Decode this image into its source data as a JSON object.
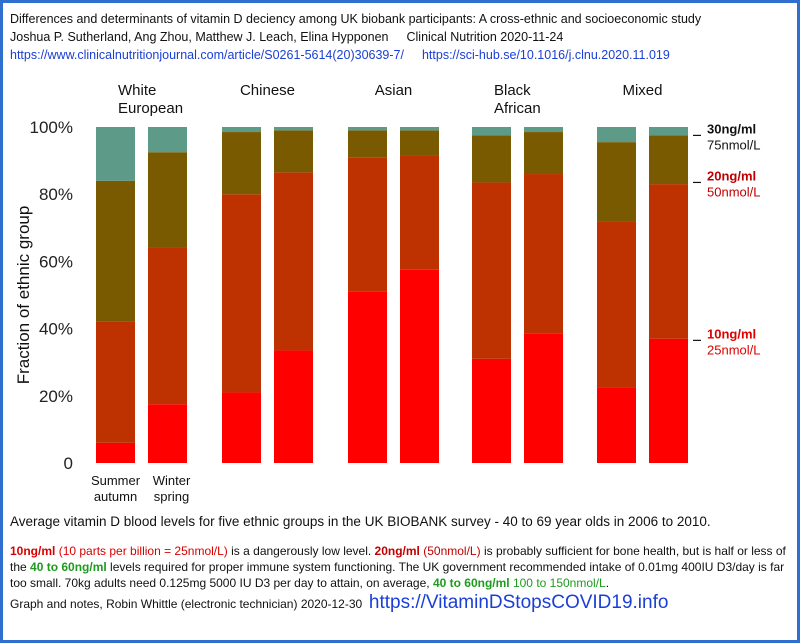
{
  "header": {
    "title": "Differences and determinants of vitamin D deciency among UK biobank participants: A cross-ethnic and socioeconomic study",
    "authors": "Joshua P. Sutherland, Ang Zhou, Matthew J. Leach, Elina Hypponen",
    "journal": "Clinical Nutrition 2020-11-24",
    "link1": "https://www.clinicalnutritionjournal.com/article/S0261-5614(20)30639-7/",
    "link2": "https://sci-hub.se/10.1016/j.clnu.2020.11.019"
  },
  "chart_data": {
    "type": "bar",
    "stacked": true,
    "ylabel": "Fraction of ethnic group",
    "ylim": [
      0,
      100
    ],
    "yticks": [
      "0",
      "20%",
      "40%",
      "60%",
      "80%",
      "100%"
    ],
    "groups": [
      "White European",
      "Chinese",
      "Asian",
      "Black African",
      "Mixed"
    ],
    "bar_labels": [
      [
        "Summer",
        "autumn"
      ],
      [
        "Winter",
        "spring"
      ]
    ],
    "colors": [
      "#ff0000",
      "#bd3200",
      "#7a5a00",
      "#5d9a88"
    ],
    "series_boundaries_percent": [
      [
        6,
        42,
        84
      ],
      [
        17.5,
        64,
        92.5
      ],
      [
        21,
        80,
        98.5
      ],
      [
        33.5,
        86.5,
        99
      ],
      [
        51,
        91,
        99
      ],
      [
        57.5,
        91.5,
        99
      ],
      [
        31,
        83.5,
        97.5
      ],
      [
        38.5,
        86,
        98.5
      ],
      [
        22.5,
        72,
        95.5
      ],
      [
        37,
        83,
        97.5
      ]
    ],
    "thresholds": [
      {
        "y": 97.5,
        "label": "30ng/ml",
        "sub": "75nmol/L",
        "color": "#111111"
      },
      {
        "y": 83.5,
        "label": "20ng/ml",
        "sub": "50nmol/L",
        "color": "#c00000"
      },
      {
        "y": 36.5,
        "label": "10ng/ml",
        "sub": "25nmol/L",
        "color": "#e00000"
      }
    ]
  },
  "caption": "Average vitamin D blood levels for five ethnic groups in the UK BIOBANK survey - 40 to 69 year olds in 2006 to 2010.",
  "notes": {
    "t1": "10ng/ml",
    "t2": " (10 parts per billion = 25nmol/L)",
    "t3": " is a dangerously low level.  ",
    "t4": "20ng/ml",
    "t5": " (50nmol/L)",
    "t6": " is probably sufficient for bone health, but is half or less of the ",
    "t7": "40 to 60ng/ml",
    "t8": " levels required for proper immune system functioning.  The UK government recommended intake of 0.01mg 400IU D3/day is far too small.  70kg adults need 0.125mg 5000 IU D3 per day to attain, on average, ",
    "t9": "40 to 60ng/ml",
    "t10": " 100 to 150nmol/L",
    "t11": "."
  },
  "credit": {
    "text": "Graph and notes, Robin Whittle (electronic technician) 2020-12-30",
    "link": "https://VitaminDStopsCOVID19.info"
  }
}
